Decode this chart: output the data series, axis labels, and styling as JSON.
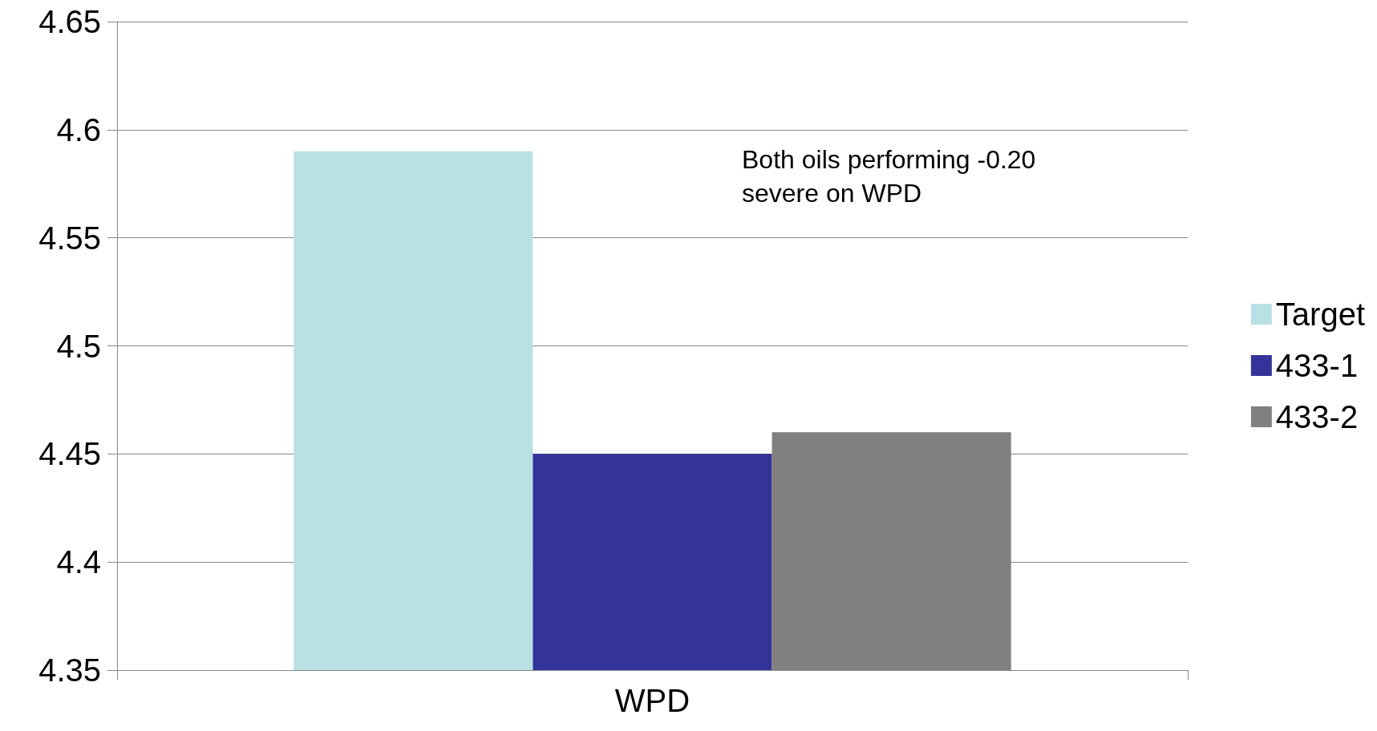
{
  "chart_data": {
    "type": "bar",
    "categories": [
      "WPD"
    ],
    "series": [
      {
        "name": "Target",
        "color": "#b9e0e3",
        "values": [
          4.59
        ]
      },
      {
        "name": "433-1",
        "color": "#333399",
        "values": [
          4.45
        ]
      },
      {
        "name": "433-2",
        "color": "#808080",
        "values": [
          4.46
        ]
      }
    ],
    "ylim": [
      4.35,
      4.65
    ],
    "yticks": [
      4.35,
      4.4,
      4.45,
      4.5,
      4.55,
      4.6,
      4.65
    ],
    "grid": "y",
    "legend": "right",
    "annotations": [
      "Both oils performing -0.20\nsevere on WPD"
    ]
  }
}
